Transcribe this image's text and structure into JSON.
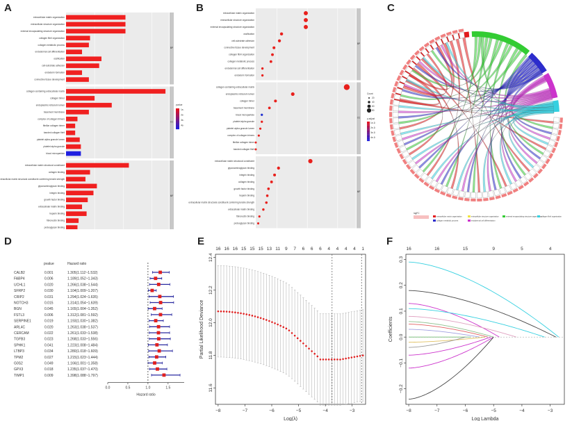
{
  "panels": {
    "A": {
      "letter": "A",
      "xlabel": "Count",
      "xticks": [
        0,
        25,
        50,
        75
      ],
      "xmax": 90,
      "legend_title": "pvalue",
      "legend_ticks": [
        "1e-10",
        "2e-10",
        "3e-10",
        "4e-10"
      ],
      "groups": [
        {
          "strip": "BP",
          "items": [
            {
              "label": "extracellular matrix organization",
              "value": 52
            },
            {
              "label": "extracellular structure organization",
              "value": 52
            },
            {
              "label": "external encapsulating structure organization",
              "value": 52
            },
            {
              "label": "collagen fibril organization",
              "value": 21
            },
            {
              "label": "collagen metabolic process",
              "value": 20
            },
            {
              "label": "endodermal cell differentiation",
              "value": 14
            },
            {
              "label": "ossification",
              "value": 31
            },
            {
              "label": "cell-substrate adhesion",
              "value": 29
            },
            {
              "label": "endoderm formation",
              "value": 14
            },
            {
              "label": "connective tissue development",
              "value": 20
            }
          ]
        },
        {
          "strip": "CC",
          "items": [
            {
              "label": "collagen-containing extracellular matrix",
              "value": 87
            },
            {
              "label": "collagen trimer",
              "value": 25
            },
            {
              "label": "endoplasmic reticulum lumen",
              "value": 40
            },
            {
              "label": "basement membrane",
              "value": 20
            },
            {
              "label": "complex of collagen trimers",
              "value": 10
            },
            {
              "label": "fibrillar collagen trimer",
              "value": 8
            },
            {
              "label": "banded collagen fibril",
              "value": 8
            },
            {
              "label": "platelet alpha granule lumen",
              "value": 12
            },
            {
              "label": "platelet alpha granule",
              "value": 13
            },
            {
              "label": "blood microparticle",
              "value": 13
            }
          ]
        },
        {
          "strip": "MF",
          "items": [
            {
              "label": "extracellular matrix structural constituent",
              "value": 55
            },
            {
              "label": "collagen binding",
              "value": 21
            },
            {
              "label": "extracellular matrix structural constituent conferring tensile strength",
              "value": 17
            },
            {
              "label": "glycosaminoglycan binding",
              "value": 27
            },
            {
              "label": "integrin binding",
              "value": 24
            },
            {
              "label": "growth factor binding",
              "value": 19
            },
            {
              "label": "extracellular matrix binding",
              "value": 14
            },
            {
              "label": "heparin binding",
              "value": 18
            },
            {
              "label": "fibronectin binding",
              "value": 11
            },
            {
              "label": "proteoglycan binding",
              "value": 10
            }
          ]
        }
      ]
    },
    "B": {
      "letter": "B",
      "xlabel": "GeneRatio",
      "xticks": [
        "0.1",
        "0.2",
        "0.3"
      ],
      "size_title": "Count",
      "size_ticks": [
        "20",
        "40",
        "60",
        "80"
      ],
      "color_title": "p.adjust",
      "color_ticks": [
        "1e-10",
        "2e-10",
        "3e-10",
        "4e-10"
      ],
      "groups": [
        {
          "strip": "BP",
          "items": [
            {
              "label": "extracellular matrix organization",
              "value": 0.195
            },
            {
              "label": "extracellular structure organization",
              "value": 0.195
            },
            {
              "label": "external encapsulating structure organization",
              "value": 0.195
            },
            {
              "label": "ossification",
              "value": 0.115
            },
            {
              "label": "cell-substrate adhesion",
              "value": 0.108
            },
            {
              "label": "connective tissue development",
              "value": 0.09
            },
            {
              "label": "collagen fibril organization",
              "value": 0.085
            },
            {
              "label": "collagen metabolic process",
              "value": 0.08
            },
            {
              "label": "endodermal cell differentiation",
              "value": 0.052
            },
            {
              "label": "endoderm formation",
              "value": 0.052
            }
          ]
        },
        {
          "strip": "CC",
          "items": [
            {
              "label": "collagen-containing extracellular matrix",
              "value": 0.33
            },
            {
              "label": "endoplasmic reticulum lumen",
              "value": 0.152
            },
            {
              "label": "collagen trimer",
              "value": 0.095
            },
            {
              "label": "basement membrane",
              "value": 0.075
            },
            {
              "label": "blood microparticle",
              "value": 0.05
            },
            {
              "label": "platelet alpha granule",
              "value": 0.05
            },
            {
              "label": "platelet alpha granule lumen",
              "value": 0.045
            },
            {
              "label": "complex of collagen trimers",
              "value": 0.04
            },
            {
              "label": "fibrillar collagen trimer",
              "value": 0.03
            },
            {
              "label": "banded collagen fibril",
              "value": 0.03
            }
          ]
        },
        {
          "strip": "MF",
          "items": [
            {
              "label": "extracellular matrix structural constituent",
              "value": 0.21
            },
            {
              "label": "glycosaminoglycan binding",
              "value": 0.105
            },
            {
              "label": "integrin binding",
              "value": 0.092
            },
            {
              "label": "collagen binding",
              "value": 0.082
            },
            {
              "label": "growth factor binding",
              "value": 0.072
            },
            {
              "label": "heparin binding",
              "value": 0.068
            },
            {
              "label": "extracellular matrix structural constituent conferring tensile strength",
              "value": 0.065
            },
            {
              "label": "extracellular matrix binding",
              "value": 0.055
            },
            {
              "label": "fibronectin binding",
              "value": 0.042
            },
            {
              "label": "proteoglycan binding",
              "value": 0.038
            }
          ]
        }
      ]
    },
    "C": {
      "letter": "C",
      "legend_title": "logFC",
      "legend_ticks": [
        "Gene",
        "Term"
      ],
      "terms": [
        {
          "label": "extracellular matrix organization",
          "color": "#e31a1c"
        },
        {
          "label": "extracellular structure organization",
          "color": "#f0e442"
        },
        {
          "label": "external encapsulating structure organization",
          "color": "#33cc33"
        },
        {
          "label": "collagen fibril organization",
          "color": "#35d0e0"
        },
        {
          "label": "collagen metabolic process",
          "color": "#2c2ccc"
        },
        {
          "label": "endodermal cell differentiation",
          "color": "#cc33cc"
        }
      ]
    },
    "D": {
      "letter": "D",
      "col_pvalue": "pvalue",
      "col_hr": "Hazard ratio",
      "xlabel": "Hazard ratio",
      "xticks": [
        "0.0",
        "0.5",
        "1.0",
        "1.5"
      ],
      "rows": [
        {
          "gene": "CALB2",
          "p": "0.001",
          "hr_text": "1.305(1.112~1.532)",
          "hr": 1.305,
          "lo": 1.112,
          "hi": 1.532
        },
        {
          "gene": "FABP4",
          "p": "0.006",
          "hr_text": "1.189(1.052~1.343)",
          "hr": 1.189,
          "lo": 1.052,
          "hi": 1.343
        },
        {
          "gene": "UCHL1",
          "p": "0.020",
          "hr_text": "1.266(1.038~1.544)",
          "hr": 1.266,
          "lo": 1.038,
          "hi": 1.544
        },
        {
          "gene": "SFRP2",
          "p": "0.030",
          "hr_text": "1.104(1.009~1.207)",
          "hr": 1.104,
          "lo": 1.009,
          "hi": 1.207
        },
        {
          "gene": "CRIP2",
          "p": "0.031",
          "hr_text": "1.294(1.024~1.635)",
          "hr": 1.294,
          "lo": 1.024,
          "hi": 1.635
        },
        {
          "gene": "NOTCH3",
          "p": "0.015",
          "hr_text": "1.314(1.054~1.639)",
          "hr": 1.314,
          "lo": 1.054,
          "hi": 1.639
        },
        {
          "gene": "BGN",
          "p": "0.045",
          "hr_text": "1.165(1.004~1.352)",
          "hr": 1.165,
          "lo": 1.004,
          "hi": 1.352
        },
        {
          "gene": "FSTL3",
          "p": "0.006",
          "hr_text": "1.312(1.081~1.592)",
          "hr": 1.312,
          "lo": 1.081,
          "hi": 1.592
        },
        {
          "gene": "SERPINE1",
          "p": "0.019",
          "hr_text": "1.193(1.030~1.382)",
          "hr": 1.193,
          "lo": 1.03,
          "hi": 1.382
        },
        {
          "gene": "ARL4C",
          "p": "0.020",
          "hr_text": "1.263(1.038~1.537)",
          "hr": 1.263,
          "lo": 1.038,
          "hi": 1.537
        },
        {
          "gene": "CERCAM",
          "p": "0.022",
          "hr_text": "1.261(1.033~1.538)",
          "hr": 1.261,
          "lo": 1.033,
          "hi": 1.538
        },
        {
          "gene": "TGFB3",
          "p": "0.023",
          "hr_text": "1.268(1.033~1.556)",
          "hr": 1.268,
          "lo": 1.033,
          "hi": 1.556
        },
        {
          "gene": "SPHK1",
          "p": "0.041",
          "hr_text": "1.223(1.008~1.484)",
          "hr": 1.223,
          "lo": 1.008,
          "hi": 1.484
        },
        {
          "gene": "LTBP3",
          "p": "0.034",
          "hr_text": "1.280(1.018~1.609)",
          "hr": 1.28,
          "lo": 1.018,
          "hi": 1.609
        },
        {
          "gene": "TPM2",
          "p": "0.027",
          "hr_text": "1.215(1.023~1.444)",
          "hr": 1.215,
          "lo": 1.023,
          "hi": 1.444
        },
        {
          "gene": "G0S2",
          "p": "0.049",
          "hr_text": "1.166(1.001~1.358)",
          "hr": 1.166,
          "lo": 1.001,
          "hi": 1.358
        },
        {
          "gene": "GPX3",
          "p": "0.018",
          "hr_text": "1.235(1.037~1.470)",
          "hr": 1.235,
          "lo": 1.037,
          "hi": 1.47
        },
        {
          "gene": "TIMP1",
          "p": "0.009",
          "hr_text": "1.398(1.088~1.797)",
          "hr": 1.398,
          "lo": 1.088,
          "hi": 1.797
        }
      ]
    },
    "E": {
      "letter": "E",
      "xlabel": "Log(λ)",
      "ylabel": "Partial Likelihood Deviance",
      "xticks": [
        "−8",
        "−7",
        "−6",
        "−5",
        "−4",
        "−3"
      ],
      "yticks": [
        "11.6",
        "11.8",
        "12.0",
        "12.2",
        "12.4"
      ],
      "top_counts": [
        "16",
        "16",
        "16",
        "15",
        "15",
        "15",
        "13",
        "11",
        "9",
        "7",
        "6",
        "6",
        "6",
        "4",
        "4",
        "4",
        "4",
        "1"
      ],
      "vlines": [
        -3.75,
        -2.65
      ]
    },
    "F": {
      "letter": "F",
      "xlabel": "Log Lambda",
      "ylabel": "Coefficients",
      "xticks": [
        "−8",
        "−7",
        "−6",
        "−5",
        "−4",
        "−3"
      ],
      "yticks": [
        "−0.2",
        "−0.1",
        "0.0",
        "0.1",
        "0.2",
        "0.3"
      ],
      "top_counts": [
        "16",
        "16",
        "15",
        "9",
        "5",
        "4"
      ]
    }
  },
  "chart_data": [
    {
      "type": "bar",
      "panel": "A",
      "xlabel": "Count",
      "values_by_group": "see panels.A.groups"
    },
    {
      "type": "scatter",
      "panel": "B",
      "xlabel": "GeneRatio"
    },
    {
      "type": "scatter",
      "panel": "D",
      "xlabel": "Hazard ratio",
      "note": "forest plot; see panels.D.rows"
    },
    {
      "type": "line",
      "panel": "E",
      "xlabel": "Log(λ)",
      "ylabel": "Partial Likelihood Deviance",
      "xlim": [
        -8,
        -2.5
      ],
      "ylim": [
        11.5,
        12.45
      ]
    },
    {
      "type": "line",
      "panel": "F",
      "xlabel": "Log Lambda",
      "ylabel": "Coefficients",
      "xlim": [
        -8,
        -2.5
      ],
      "ylim": [
        -0.25,
        0.32
      ]
    }
  ]
}
